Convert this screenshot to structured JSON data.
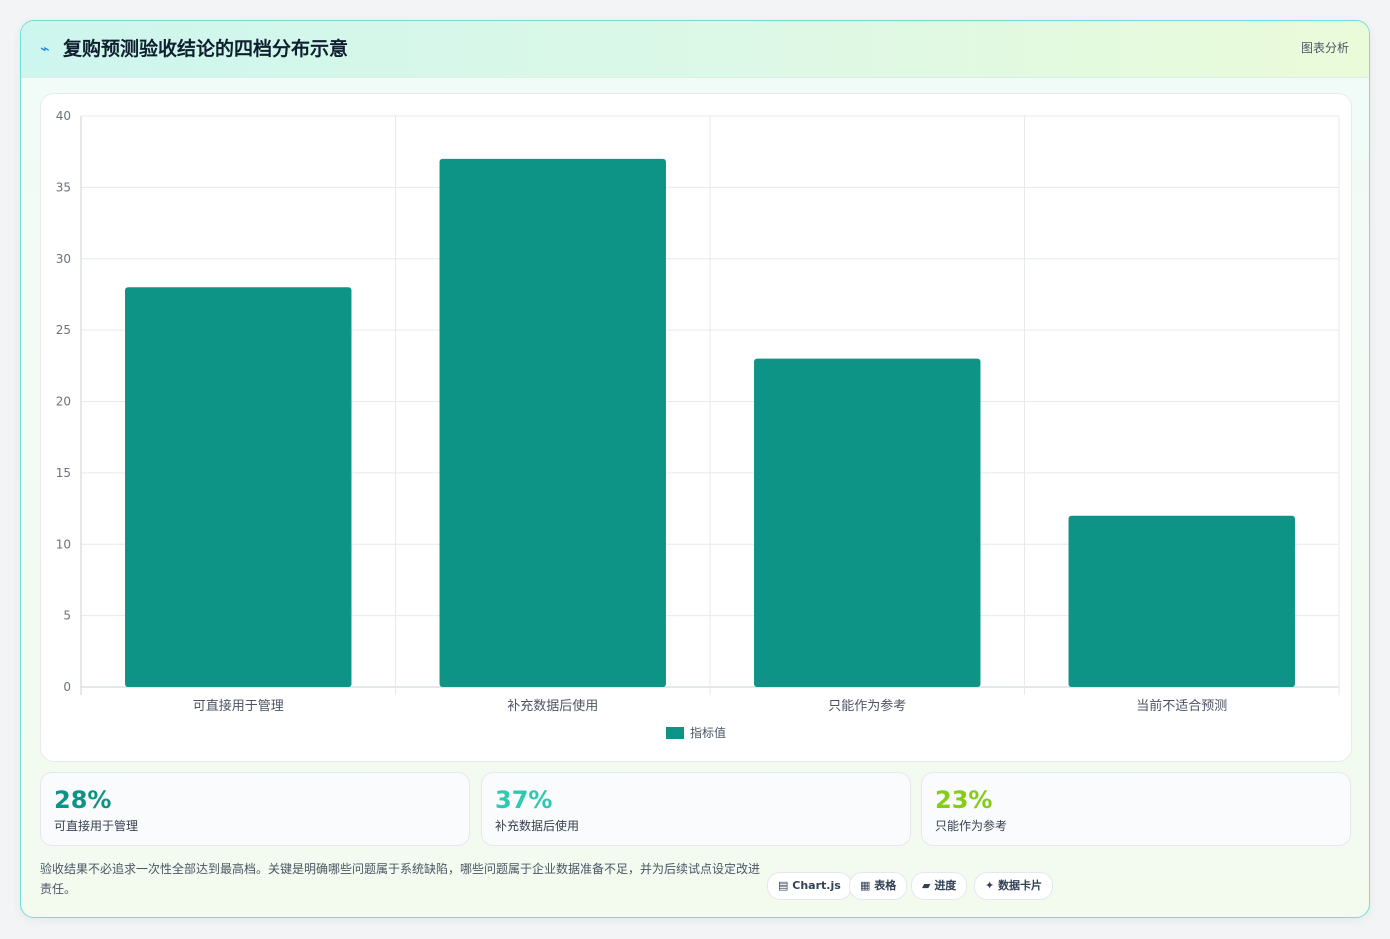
{
  "header": {
    "icon": "lightning-icon",
    "title": "复购预测验收结论的四档分布示意",
    "badge": "图表分析"
  },
  "chart_data": {
    "type": "bar",
    "categories": [
      "可直接用于管理",
      "补充数据后使用",
      "只能作为参考",
      "当前不适合预测"
    ],
    "series": [
      {
        "name": "指标值",
        "values": [
          28,
          37,
          23,
          12
        ],
        "color": "#0e9486"
      }
    ],
    "ylim": [
      0,
      40
    ],
    "yticks": [
      0,
      5,
      10,
      15,
      20,
      25,
      30,
      35,
      40
    ],
    "grid": true,
    "legend": "bottom",
    "title": "",
    "xlabel": "",
    "ylabel": ""
  },
  "stats": [
    {
      "value": "28%",
      "label": "可直接用于管理",
      "color": "#0e9486"
    },
    {
      "value": "37%",
      "label": "补充数据后使用",
      "color": "#2fc9b3"
    },
    {
      "value": "23%",
      "label": "只能作为参考",
      "color": "#84cc16"
    }
  ],
  "note": "验收结果不必追求一次性全部达到最高档。关键是明确哪些问题属于系统缺陷，哪些问题属于企业数据准备不足，并为后续试点设定改进责任。",
  "tags": [
    {
      "icon": "chart-icon",
      "glyph": "▤",
      "label": "Chart.js"
    },
    {
      "icon": "table-icon",
      "glyph": "▦",
      "label": "表格"
    },
    {
      "icon": "progress-icon",
      "glyph": "▰",
      "label": "进度"
    },
    {
      "icon": "sparkle-icon",
      "glyph": "✦",
      "label": "数据卡片"
    }
  ]
}
